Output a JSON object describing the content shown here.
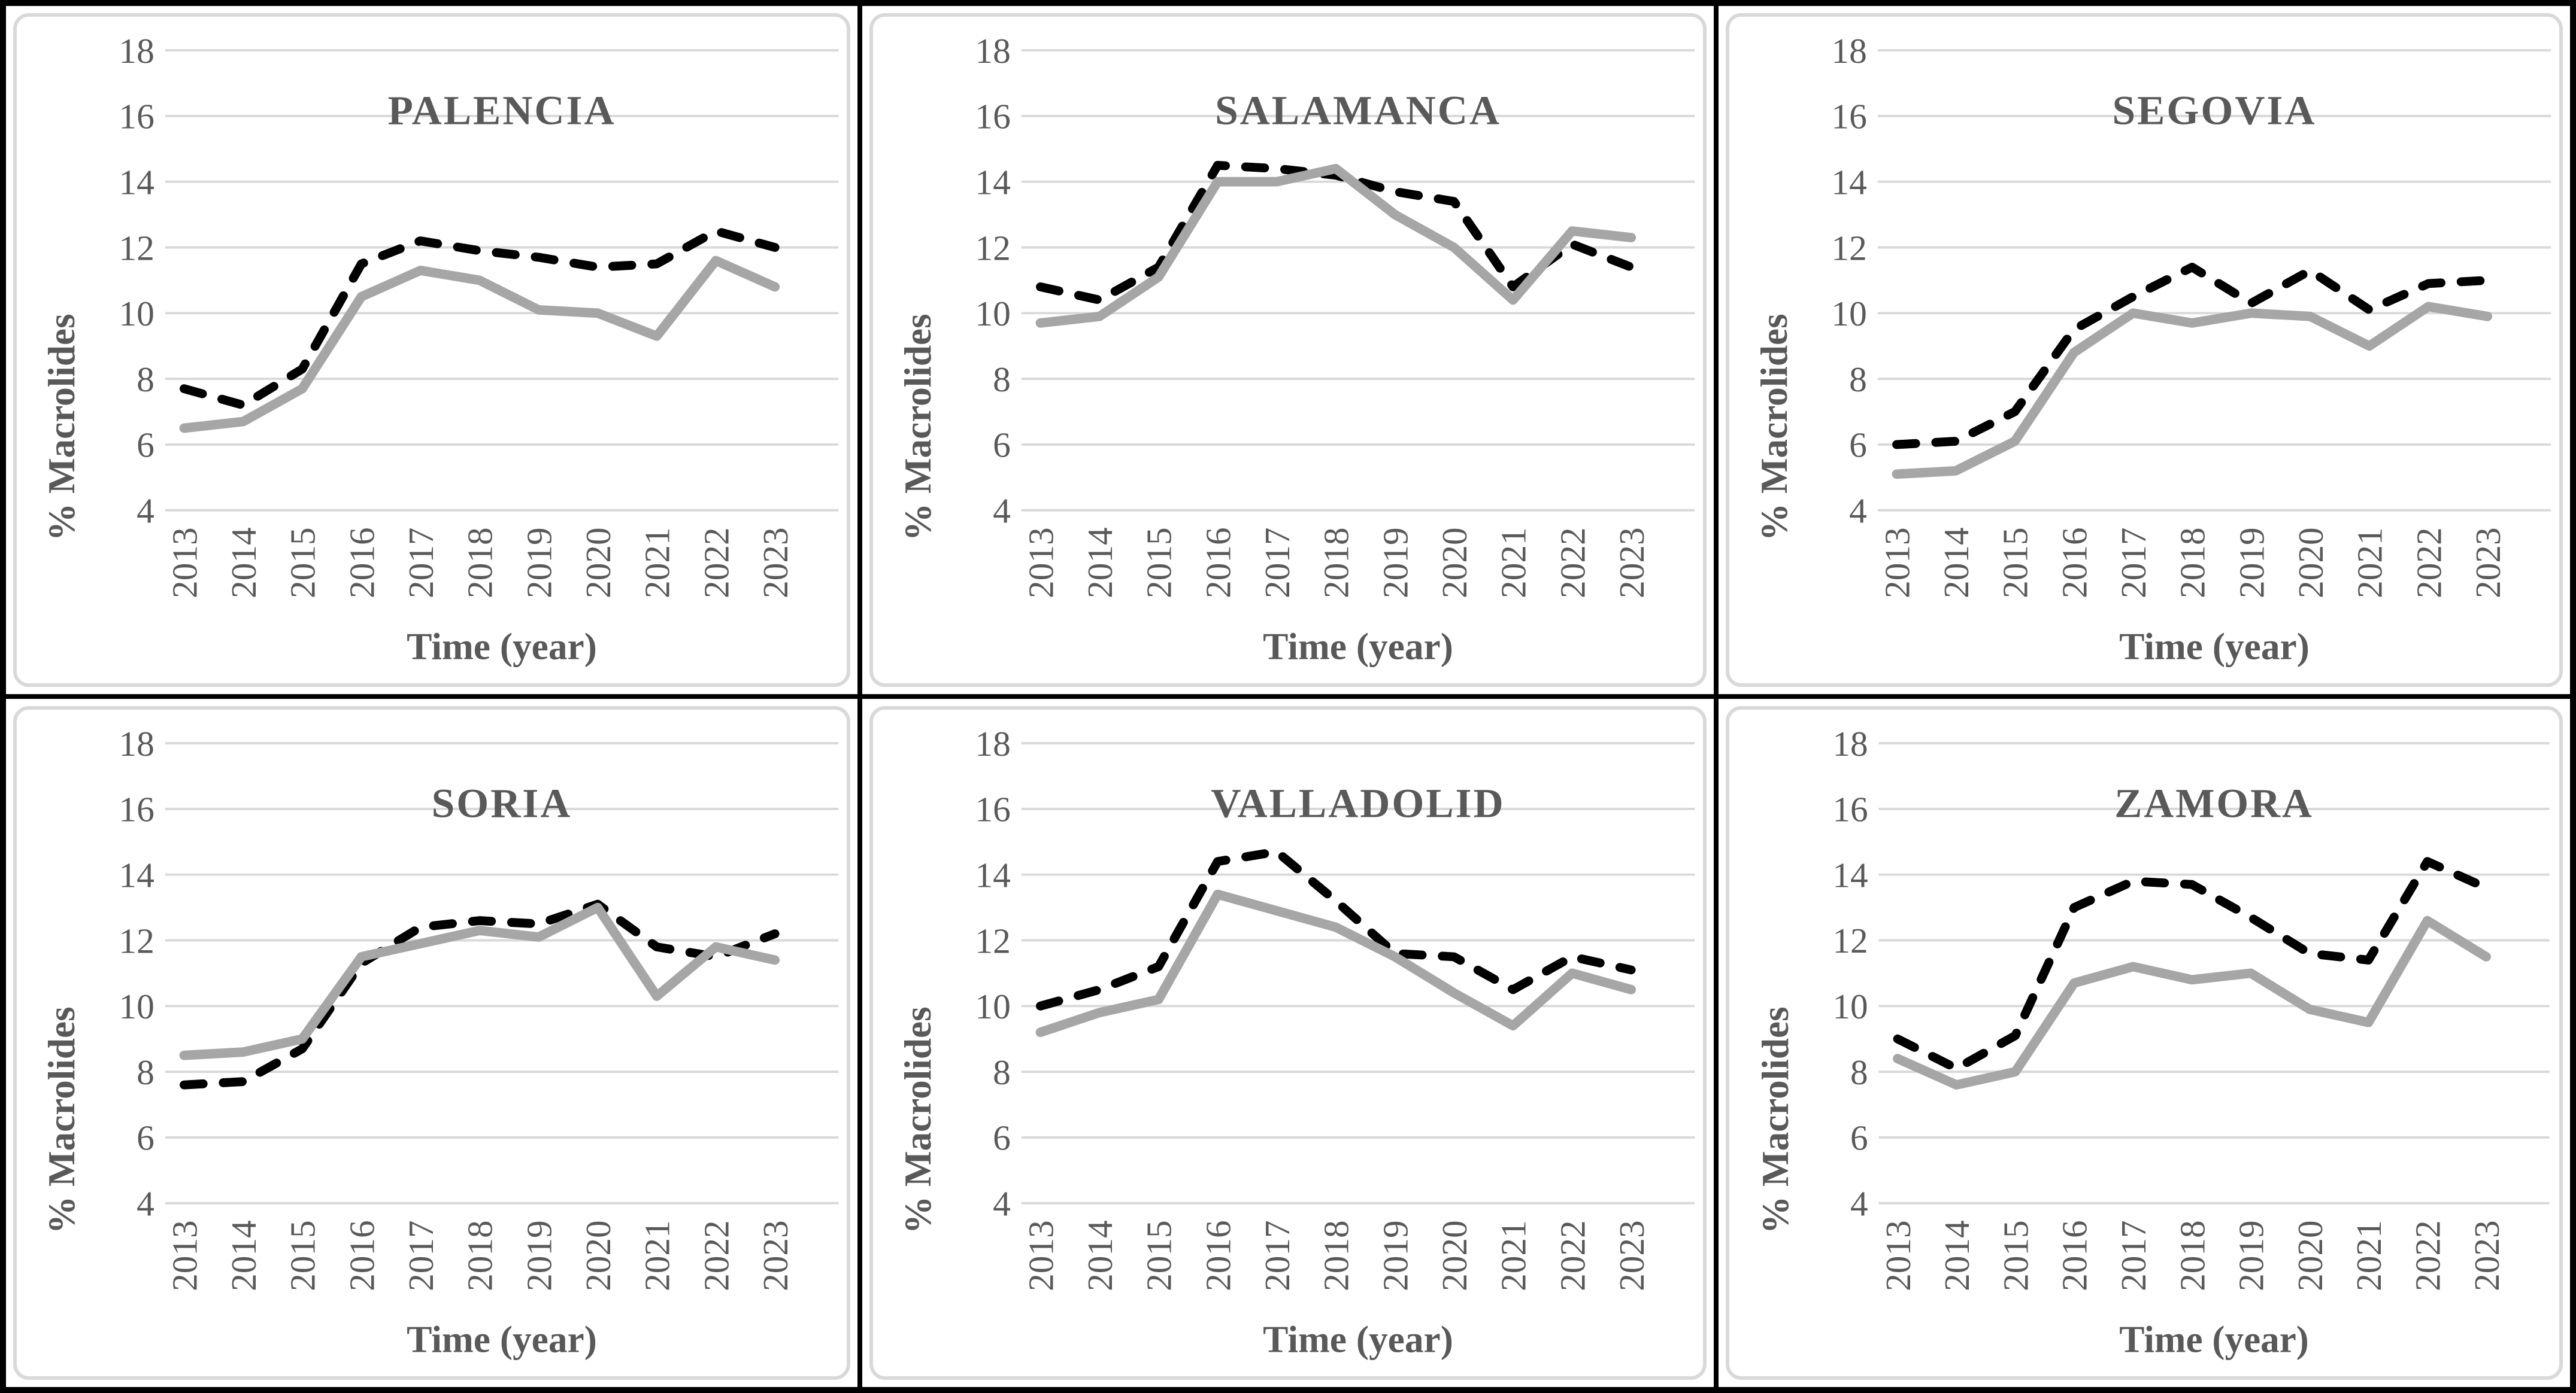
{
  "figure": {
    "outer_border_color": "#000000",
    "panel_background": "#ffffff",
    "chart_border_color": "#d9d9d9"
  },
  "styles": {
    "gridline_color": "#d9d9d9",
    "text_color": "#595959",
    "dashed_series_color": "#000000",
    "solid_series_color": "#a6a6a6"
  },
  "chart_data": [
    {
      "type": "line",
      "title": "PALENCIA",
      "xlabel": "Time (year)",
      "ylabel": "% Macrolides",
      "x": [
        "2013",
        "2014",
        "2015",
        "2016",
        "2017",
        "2018",
        "2019",
        "2020",
        "2021",
        "2022",
        "2023"
      ],
      "ylim": [
        4,
        18
      ],
      "yticks": [
        4,
        6,
        8,
        10,
        12,
        14,
        16,
        18
      ],
      "grid": true,
      "legend_position": "none",
      "series": [
        {
          "name": "dashed-black",
          "style": "dashed",
          "values": [
            7.7,
            7.2,
            8.3,
            11.5,
            12.2,
            11.9,
            11.7,
            11.4,
            11.5,
            12.5,
            12.0
          ]
        },
        {
          "name": "solid-gray",
          "style": "solid",
          "values": [
            6.5,
            6.7,
            7.7,
            10.5,
            11.3,
            11.0,
            10.1,
            10.0,
            9.3,
            11.6,
            10.8
          ]
        }
      ]
    },
    {
      "type": "line",
      "title": "SALAMANCA",
      "xlabel": "Time (year)",
      "ylabel": "% Macrolides",
      "x": [
        "2013",
        "2014",
        "2015",
        "2016",
        "2017",
        "2018",
        "2019",
        "2020",
        "2021",
        "2022",
        "2023"
      ],
      "ylim": [
        4,
        18
      ],
      "yticks": [
        4,
        6,
        8,
        10,
        12,
        14,
        16,
        18
      ],
      "grid": true,
      "legend_position": "none",
      "series": [
        {
          "name": "dashed-black",
          "style": "dashed",
          "values": [
            10.8,
            10.4,
            11.4,
            14.5,
            14.4,
            14.2,
            13.7,
            13.4,
            10.8,
            12.1,
            11.4
          ]
        },
        {
          "name": "solid-gray",
          "style": "solid",
          "values": [
            9.7,
            9.9,
            11.1,
            14.0,
            14.0,
            14.4,
            13.0,
            12.0,
            10.4,
            12.5,
            12.3
          ]
        }
      ]
    },
    {
      "type": "line",
      "title": "SEGOVIA",
      "xlabel": "Time (year)",
      "ylabel": "% Macrolides",
      "x": [
        "2013",
        "2014",
        "2015",
        "2016",
        "2017",
        "2018",
        "2019",
        "2020",
        "2021",
        "2022",
        "2023"
      ],
      "ylim": [
        4,
        18
      ],
      "yticks": [
        4,
        6,
        8,
        10,
        12,
        14,
        16,
        18
      ],
      "grid": true,
      "legend_position": "none",
      "series": [
        {
          "name": "dashed-black",
          "style": "dashed",
          "values": [
            6.0,
            6.1,
            7.0,
            9.5,
            10.5,
            11.4,
            10.3,
            11.3,
            10.1,
            10.9,
            11.0
          ]
        },
        {
          "name": "solid-gray",
          "style": "solid",
          "values": [
            5.1,
            5.2,
            6.1,
            8.8,
            10.0,
            9.7,
            10.0,
            9.9,
            9.0,
            10.2,
            9.9
          ]
        }
      ]
    },
    {
      "type": "line",
      "title": "SORIA",
      "xlabel": "Time (year)",
      "ylabel": "% Macrolides",
      "x": [
        "2013",
        "2014",
        "2015",
        "2016",
        "2017",
        "2018",
        "2019",
        "2020",
        "2021",
        "2022",
        "2023"
      ],
      "ylim": [
        4,
        18
      ],
      "yticks": [
        4,
        6,
        8,
        10,
        12,
        14,
        16,
        18
      ],
      "grid": true,
      "legend_position": "none",
      "series": [
        {
          "name": "dashed-black",
          "style": "dashed",
          "values": [
            7.6,
            7.7,
            8.7,
            11.3,
            12.4,
            12.6,
            12.5,
            13.1,
            11.8,
            11.5,
            12.2
          ]
        },
        {
          "name": "solid-gray",
          "style": "solid",
          "values": [
            8.5,
            8.6,
            9.0,
            11.5,
            11.9,
            12.3,
            12.1,
            13.0,
            10.3,
            11.8,
            11.4
          ]
        }
      ]
    },
    {
      "type": "line",
      "title": "VALLADOLID",
      "xlabel": "Time (year)",
      "ylabel": "% Macrolides",
      "x": [
        "2013",
        "2014",
        "2015",
        "2016",
        "2017",
        "2018",
        "2019",
        "2020",
        "2021",
        "2022",
        "2023"
      ],
      "ylim": [
        4,
        18
      ],
      "yticks": [
        4,
        6,
        8,
        10,
        12,
        14,
        16,
        18
      ],
      "grid": true,
      "legend_position": "none",
      "series": [
        {
          "name": "dashed-black",
          "style": "dashed",
          "values": [
            10.0,
            10.5,
            11.2,
            14.4,
            14.7,
            13.2,
            11.6,
            11.5,
            10.5,
            11.5,
            11.1
          ]
        },
        {
          "name": "solid-gray",
          "style": "solid",
          "values": [
            9.2,
            9.8,
            10.2,
            13.4,
            12.9,
            12.4,
            11.5,
            10.4,
            9.4,
            11.0,
            10.5
          ]
        }
      ]
    },
    {
      "type": "line",
      "title": "ZAMORA",
      "xlabel": "Time (year)",
      "ylabel": "% Macrolides",
      "x": [
        "2013",
        "2014",
        "2015",
        "2016",
        "2017",
        "2018",
        "2019",
        "2020",
        "2021",
        "2022",
        "2023"
      ],
      "ylim": [
        4,
        18
      ],
      "yticks": [
        4,
        6,
        8,
        10,
        12,
        14,
        16,
        18
      ],
      "grid": true,
      "legend_position": "none",
      "series": [
        {
          "name": "dashed-black",
          "style": "dashed",
          "values": [
            9.0,
            8.1,
            9.1,
            13.0,
            13.8,
            13.7,
            12.7,
            11.6,
            11.4,
            14.4,
            13.6
          ]
        },
        {
          "name": "solid-gray",
          "style": "solid",
          "values": [
            8.4,
            7.6,
            8.0,
            10.7,
            11.2,
            10.8,
            11.0,
            9.9,
            9.5,
            12.6,
            11.5
          ]
        }
      ]
    }
  ]
}
